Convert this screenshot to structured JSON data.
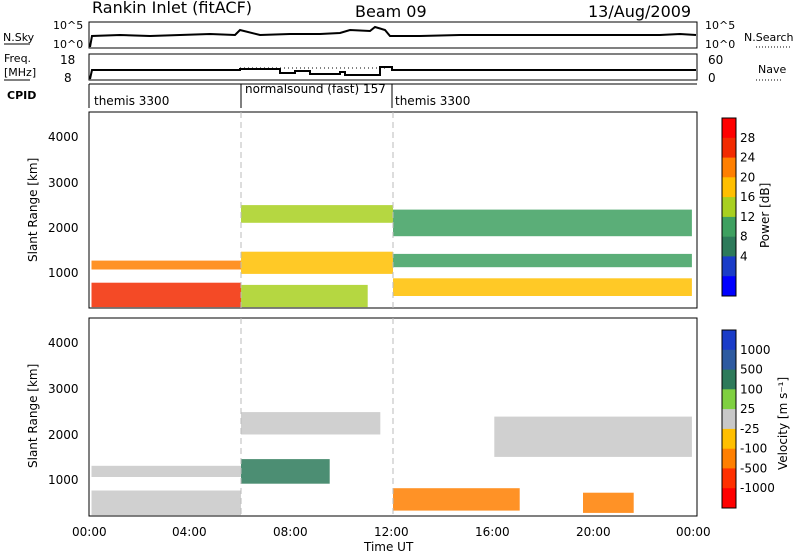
{
  "header": {
    "station": "Rankin Inlet (fitACF)",
    "beam": "Beam 09",
    "date": "13/Aug/2009"
  },
  "strip": {
    "nsky_label": "N.Sky",
    "nsearch_label": "N.Search",
    "nsky_ticks": [
      "10^5",
      "10^0"
    ],
    "nsky_right_ticks": [
      "10^5",
      "10^0"
    ],
    "freq_label_1": "Freq.",
    "freq_label_2": "[MHz]",
    "freq_ticks": [
      "18",
      "8"
    ],
    "nave_label": "Nave",
    "nave_ticks": [
      "60",
      "0"
    ],
    "cpid_label": "CPID",
    "cpid_segments": [
      {
        "label": "themis 3300",
        "start_hour": 0
      },
      {
        "label": "normalsound (fast) 157",
        "start_hour": 6
      },
      {
        "label": "themis 3300",
        "start_hour": 12
      }
    ]
  },
  "panels": {
    "power": {
      "ylabel": "Slant Range [km]",
      "yticks": [
        "4000",
        "3000",
        "2000",
        "1000"
      ],
      "cbar_label": "Power [dB]",
      "cbar_ticks": [
        "28",
        "24",
        "20",
        "16",
        "12",
        "8",
        "4"
      ],
      "cbar_colors": [
        "#ff0000",
        "#f22a00",
        "#ff7f00",
        "#ffbf00",
        "#a8d020",
        "#3ea060",
        "#2d7a5a",
        "#1a3cc8",
        "#0000ff"
      ]
    },
    "velocity": {
      "ylabel": "Slant Range [km]",
      "yticks": [
        "4000",
        "3000",
        "2000",
        "1000"
      ],
      "cbar_label": "Velocity [m s⁻¹]",
      "cbar_ticks": [
        "1000",
        "500",
        "100",
        "25",
        "-25",
        "-100",
        "-500",
        "-1000"
      ],
      "cbar_colors": [
        "#1a3cc8",
        "#2d5aa0",
        "#2d7a5a",
        "#7fd040",
        "#c8c8c8",
        "#ffbf00",
        "#ff7f00",
        "#ff3000",
        "#ff0000"
      ]
    }
  },
  "xaxis": {
    "ticks": [
      "00:00",
      "04:00",
      "08:00",
      "12:00",
      "16:00",
      "20:00",
      "00:00"
    ],
    "label": "Time UT"
  },
  "chart_data": [
    {
      "type": "heatmap",
      "title": "Power",
      "xlabel": "Time UT",
      "ylabel": "Slant Range [km]",
      "xlim": [
        0,
        24
      ],
      "ylim": [
        180,
        4600
      ],
      "clabel": "Power [dB]",
      "clim": [
        0,
        30
      ],
      "regions": [
        {
          "t": [
            0.1,
            6.0
          ],
          "r": [
            200,
            750
          ],
          "value": 28
        },
        {
          "t": [
            0.1,
            6.0
          ],
          "r": [
            1050,
            1250
          ],
          "value": 22
        },
        {
          "t": [
            6.0,
            11.0
          ],
          "r": [
            200,
            700
          ],
          "value": 16
        },
        {
          "t": [
            6.0,
            12.0
          ],
          "r": [
            2100,
            2500
          ],
          "value": 14
        },
        {
          "t": [
            6.0,
            12.0
          ],
          "r": [
            950,
            1450
          ],
          "value": 20
        },
        {
          "t": [
            12.0,
            23.8
          ],
          "r": [
            450,
            850
          ],
          "value": 18
        },
        {
          "t": [
            12.0,
            23.8
          ],
          "r": [
            1100,
            1400
          ],
          "value": 10
        },
        {
          "t": [
            12.0,
            23.8
          ],
          "r": [
            1800,
            2400
          ],
          "value": 12
        }
      ]
    },
    {
      "type": "heatmap",
      "title": "Velocity",
      "xlabel": "Time UT",
      "ylabel": "Slant Range [km]",
      "xlim": [
        0,
        24
      ],
      "ylim": [
        180,
        4600
      ],
      "clabel": "Velocity [m s⁻¹]",
      "clim": [
        -1000,
        1000
      ],
      "regions": [
        {
          "t": [
            0.1,
            6.0
          ],
          "r": [
            200,
            750
          ],
          "value": 0
        },
        {
          "t": [
            0.1,
            6.0
          ],
          "r": [
            1050,
            1300
          ],
          "value": 0
        },
        {
          "t": [
            6.0,
            9.5
          ],
          "r": [
            900,
            1450
          ],
          "value": 150
        },
        {
          "t": [
            6.0,
            11.5
          ],
          "r": [
            2000,
            2500
          ],
          "value": 0
        },
        {
          "t": [
            12.0,
            17.0
          ],
          "r": [
            300,
            800
          ],
          "value": -300
        },
        {
          "t": [
            19.5,
            21.5
          ],
          "r": [
            250,
            700
          ],
          "value": -300
        },
        {
          "t": [
            16.0,
            23.8
          ],
          "r": [
            1500,
            2400
          ],
          "value": 0
        }
      ]
    }
  ]
}
